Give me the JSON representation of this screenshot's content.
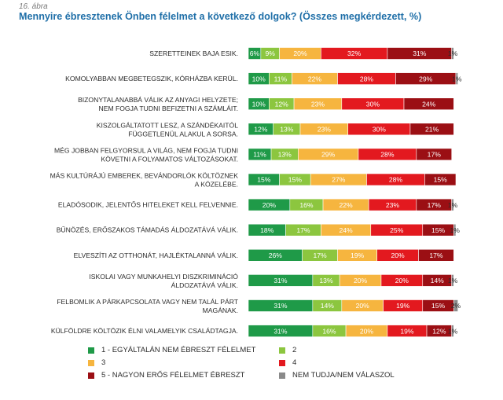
{
  "figure_label": "16. ábra",
  "title": "Mennyire ébresztenek Önben félelmet a következő dolgok? (Összes megkérdezett, %)",
  "colors": {
    "c1": "#1f9a48",
    "c2": "#8cc63f",
    "c3": "#f6b53f",
    "c4": "#e3191f",
    "c5": "#9b0f14",
    "c6": "#8a8a8a"
  },
  "chart_data": {
    "type": "bar",
    "orientation": "horizontal",
    "stacked": true,
    "xlim": [
      0,
      100
    ],
    "categories": [
      [
        "SZERETTEINEK BAJA ESIK."
      ],
      [
        "KOMOLYABBAN MEGBETEGSZIK, KÓRHÁZBA KERÜL."
      ],
      [
        "BIZONYTALANABBÁ VÁLIK AZ ANYAGI HELYZETE;",
        "NEM FOGJA TUDNI BEFIZETNI A SZÁMLÁIT."
      ],
      [
        "KISZOLGÁLTATOTT LESZ, A SZÁNDÉKAITÓL",
        "FÜGGETLENÜL ALAKUL A SORSA."
      ],
      [
        "MÉG JOBBAN FELGYORSUL A VILÁG, NEM FOGJA TUDNI",
        "KÖVETNI A FOLYAMATOS VÁLTOZÁSOKAT."
      ],
      [
        "MÁS KULTÚRÁJÚ EMBEREK, BEVÁNDORLÓK KÖLTÖZNEK",
        "A KÖZELÉBE."
      ],
      [
        "ELADÓSODIK, JELENTŐS HITELEKET KELL FELVENNIE."
      ],
      [
        "BŰNÖZÉS, ERŐSZAKOS TÁMADÁS ÁLDOZATÁVÁ VÁLIK."
      ],
      [
        "ELVESZÍTI AZ OTTHONÁT, HAJLÉKTALANNÁ VÁLIK."
      ],
      [
        "ISKOLAI VAGY MUNKAHELYI DISZKRIMINÁCIÓ",
        "ÁLDOZATÁVÁ VÁLIK."
      ],
      [
        "FELBOMLIK A PÁRKAPCSOLATA VAGY NEM TALÁL PÁRT",
        "MAGÁNAK."
      ],
      [
        "KÜLFÖLDRE KÖLTÖZIK ÉLNI VALAMELYIK CSALÁDTAGJA."
      ]
    ],
    "series": [
      {
        "name": "1 - EGYÁLTALÁN NEM ÉBRESZT FÉLELMET",
        "color": "#1f9a48",
        "values": [
          6,
          10,
          10,
          12,
          11,
          15,
          20,
          18,
          26,
          31,
          31,
          31
        ]
      },
      {
        "name": "2",
        "color": "#8cc63f",
        "values": [
          9,
          11,
          12,
          13,
          13,
          15,
          16,
          17,
          17,
          13,
          14,
          16
        ]
      },
      {
        "name": "3",
        "color": "#f6b53f",
        "values": [
          20,
          22,
          23,
          23,
          29,
          27,
          22,
          24,
          19,
          20,
          20,
          20
        ]
      },
      {
        "name": "4",
        "color": "#e3191f",
        "values": [
          32,
          28,
          30,
          30,
          28,
          28,
          23,
          25,
          20,
          20,
          19,
          19
        ]
      },
      {
        "name": "5 - NAGYON ERŐS FÉLELMET ÉBRESZT",
        "color": "#9b0f14",
        "values": [
          31,
          29,
          24,
          21,
          17,
          15,
          17,
          15,
          17,
          14,
          15,
          12
        ]
      },
      {
        "name": "NEM TUDJA/NEM VÁLASZOL",
        "color": "#8a8a8a",
        "values": [
          1,
          1,
          0,
          0,
          0,
          0,
          1,
          1,
          0,
          1,
          2,
          1
        ]
      }
    ],
    "value_labels": [
      [
        "6%",
        "9%",
        "20%",
        "32%",
        "31%",
        "1%"
      ],
      [
        "10%",
        "11%",
        "22%",
        "28%",
        "29%",
        "1%"
      ],
      [
        "10%",
        "12%",
        "23%",
        "30%",
        "24%",
        ""
      ],
      [
        "12%",
        "13%",
        "23%",
        "30%",
        "21%",
        ""
      ],
      [
        "11%",
        "13%",
        "29%",
        "28%",
        "17%",
        ""
      ],
      [
        "15%",
        "15%",
        "27%",
        "28%",
        "15%",
        ""
      ],
      [
        "20%",
        "16%",
        "22%",
        "23%",
        "17%",
        "1%"
      ],
      [
        "18%",
        "17%",
        "24%",
        "25%",
        "15%",
        "1%"
      ],
      [
        "26%",
        "17%",
        "19%",
        "20%",
        "17%",
        ""
      ],
      [
        "31%",
        "13%",
        "20%",
        "20%",
        "14%",
        "1%"
      ],
      [
        "31%",
        "14%",
        "20%",
        "19%",
        "15%",
        "2%"
      ],
      [
        "31%",
        "16%",
        "20%",
        "19%",
        "12%",
        "1%"
      ]
    ],
    "legend_position": "bottom",
    "grid": false
  }
}
